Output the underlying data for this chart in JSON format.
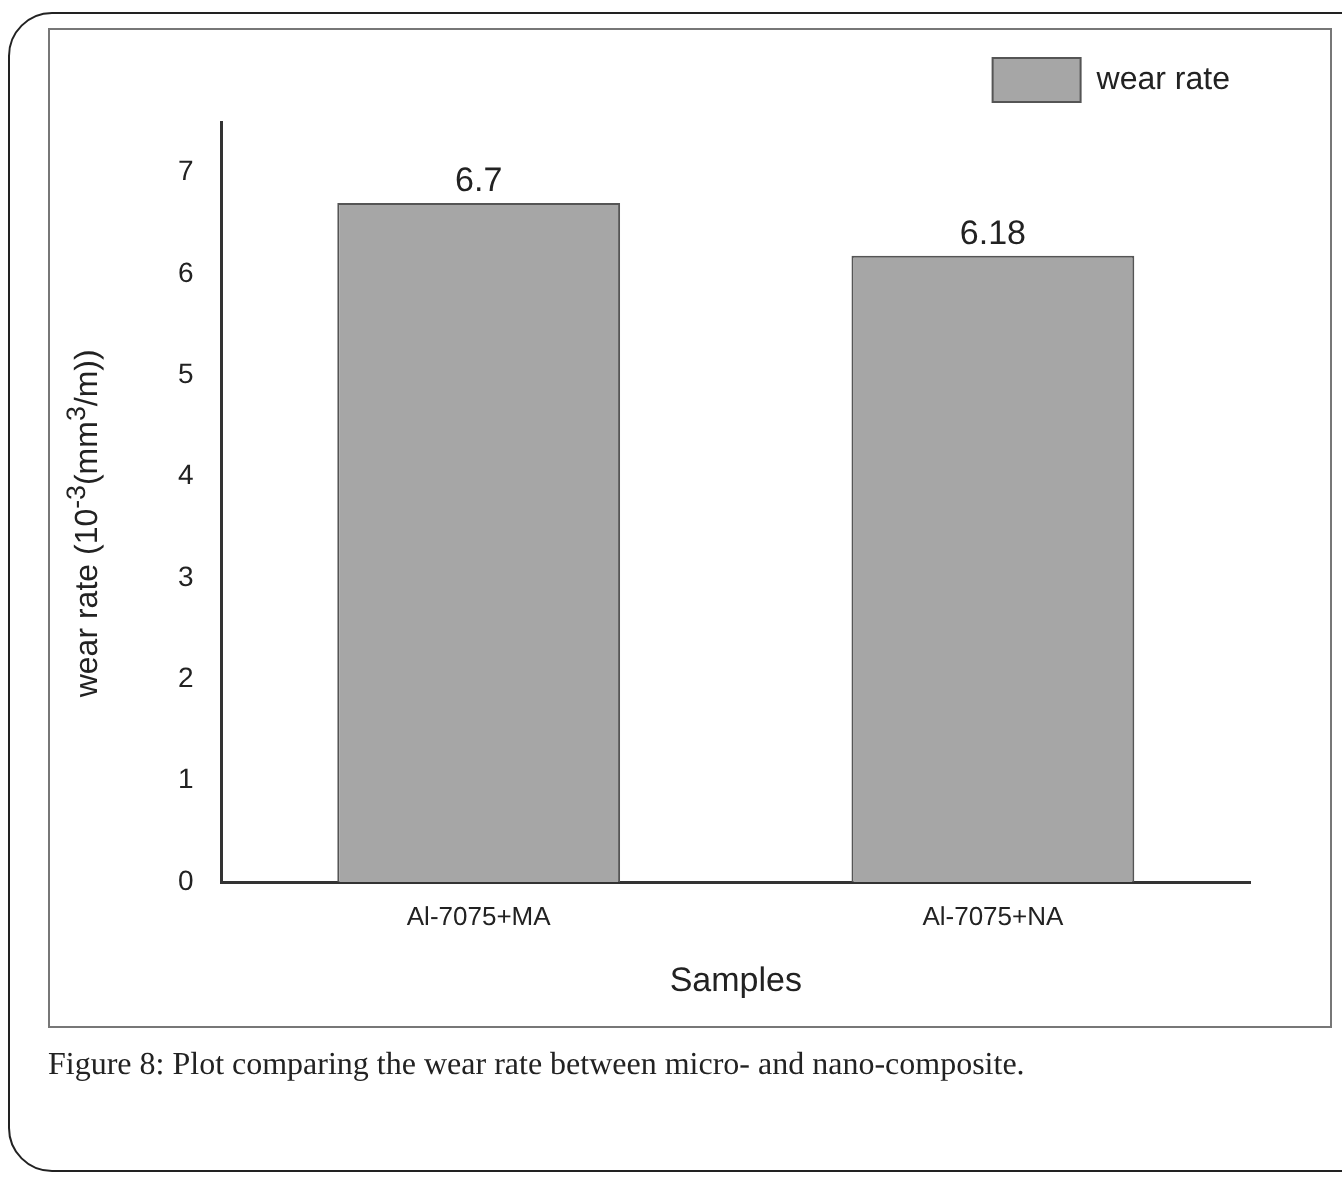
{
  "chart_data": {
    "type": "bar",
    "xlabel": "Samples",
    "ylabel": "wear rate (10$^{-3}$(mm$^{3}$/m))",
    "categories": [
      "Al-7075+MA",
      "Al-7075+NA"
    ],
    "series": [
      {
        "name": "wear rate",
        "color": "#a6a6a6",
        "values": [
          6.7,
          6.18
        ]
      }
    ],
    "ylim": [
      0,
      7.5
    ],
    "yticks": [
      0,
      1,
      2,
      3,
      4,
      5,
      6,
      7
    ],
    "grid": false,
    "legend": "top right",
    "data_labels": true,
    "annotations": [
      "Figure 8: Plot comparing the wear rate between micro- and nano-composite."
    ]
  }
}
